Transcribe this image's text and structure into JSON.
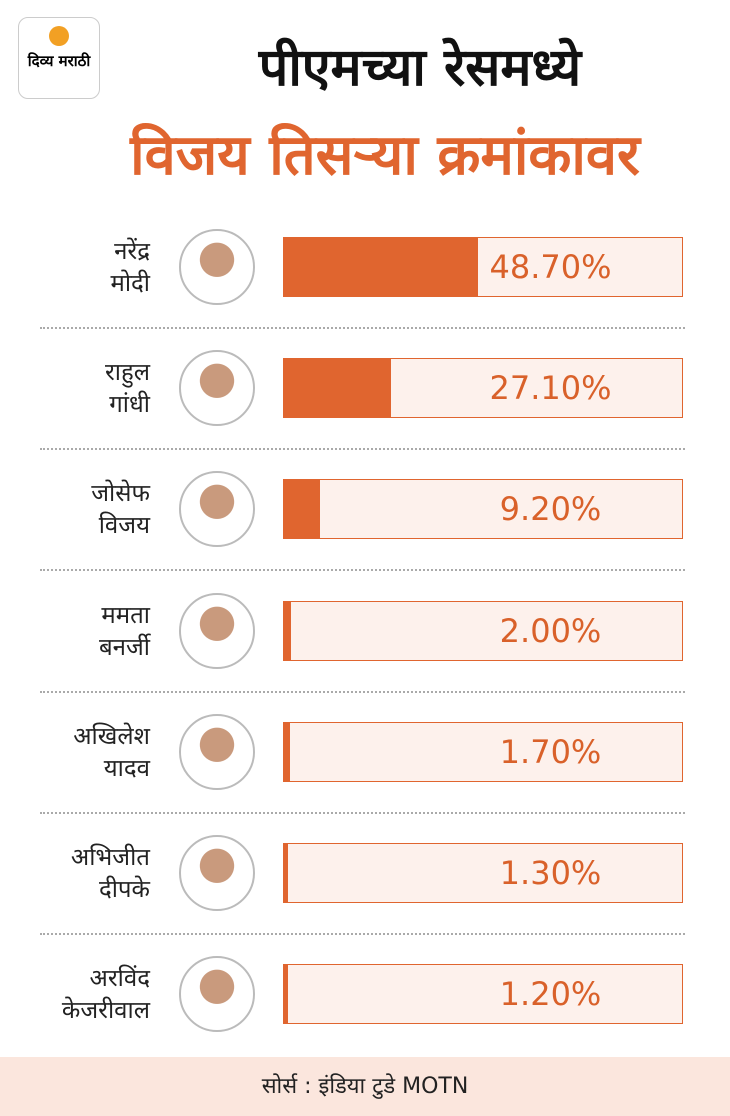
{
  "logo": "दिव्य मराठी",
  "chart_data": {
    "type": "bar",
    "title": "पीएमच्या रेसमध्ये",
    "subtitle": "विजय तिसऱ्या क्रमांकावर",
    "categories": [
      "नरेंद्र\nमोदी",
      "राहुल\nगांधी",
      "जोसेफ\nविजय",
      "ममता\nबनर्जी",
      "अखिलेश\nयादव",
      "अभिजीत\nदीपके",
      "अरविंद\nकेजरीवाल"
    ],
    "values": [
      48.7,
      27.1,
      9.2,
      2.0,
      1.7,
      1.3,
      1.2
    ],
    "value_labels": [
      "48.70%",
      "27.10%",
      "9.20%",
      "2.00%",
      "1.70%",
      "1.30%",
      "1.20%"
    ],
    "xlim": [
      0,
      100
    ],
    "color": "#e0652f",
    "source": "सोर्स : इंडिया टुडे MOTN"
  }
}
